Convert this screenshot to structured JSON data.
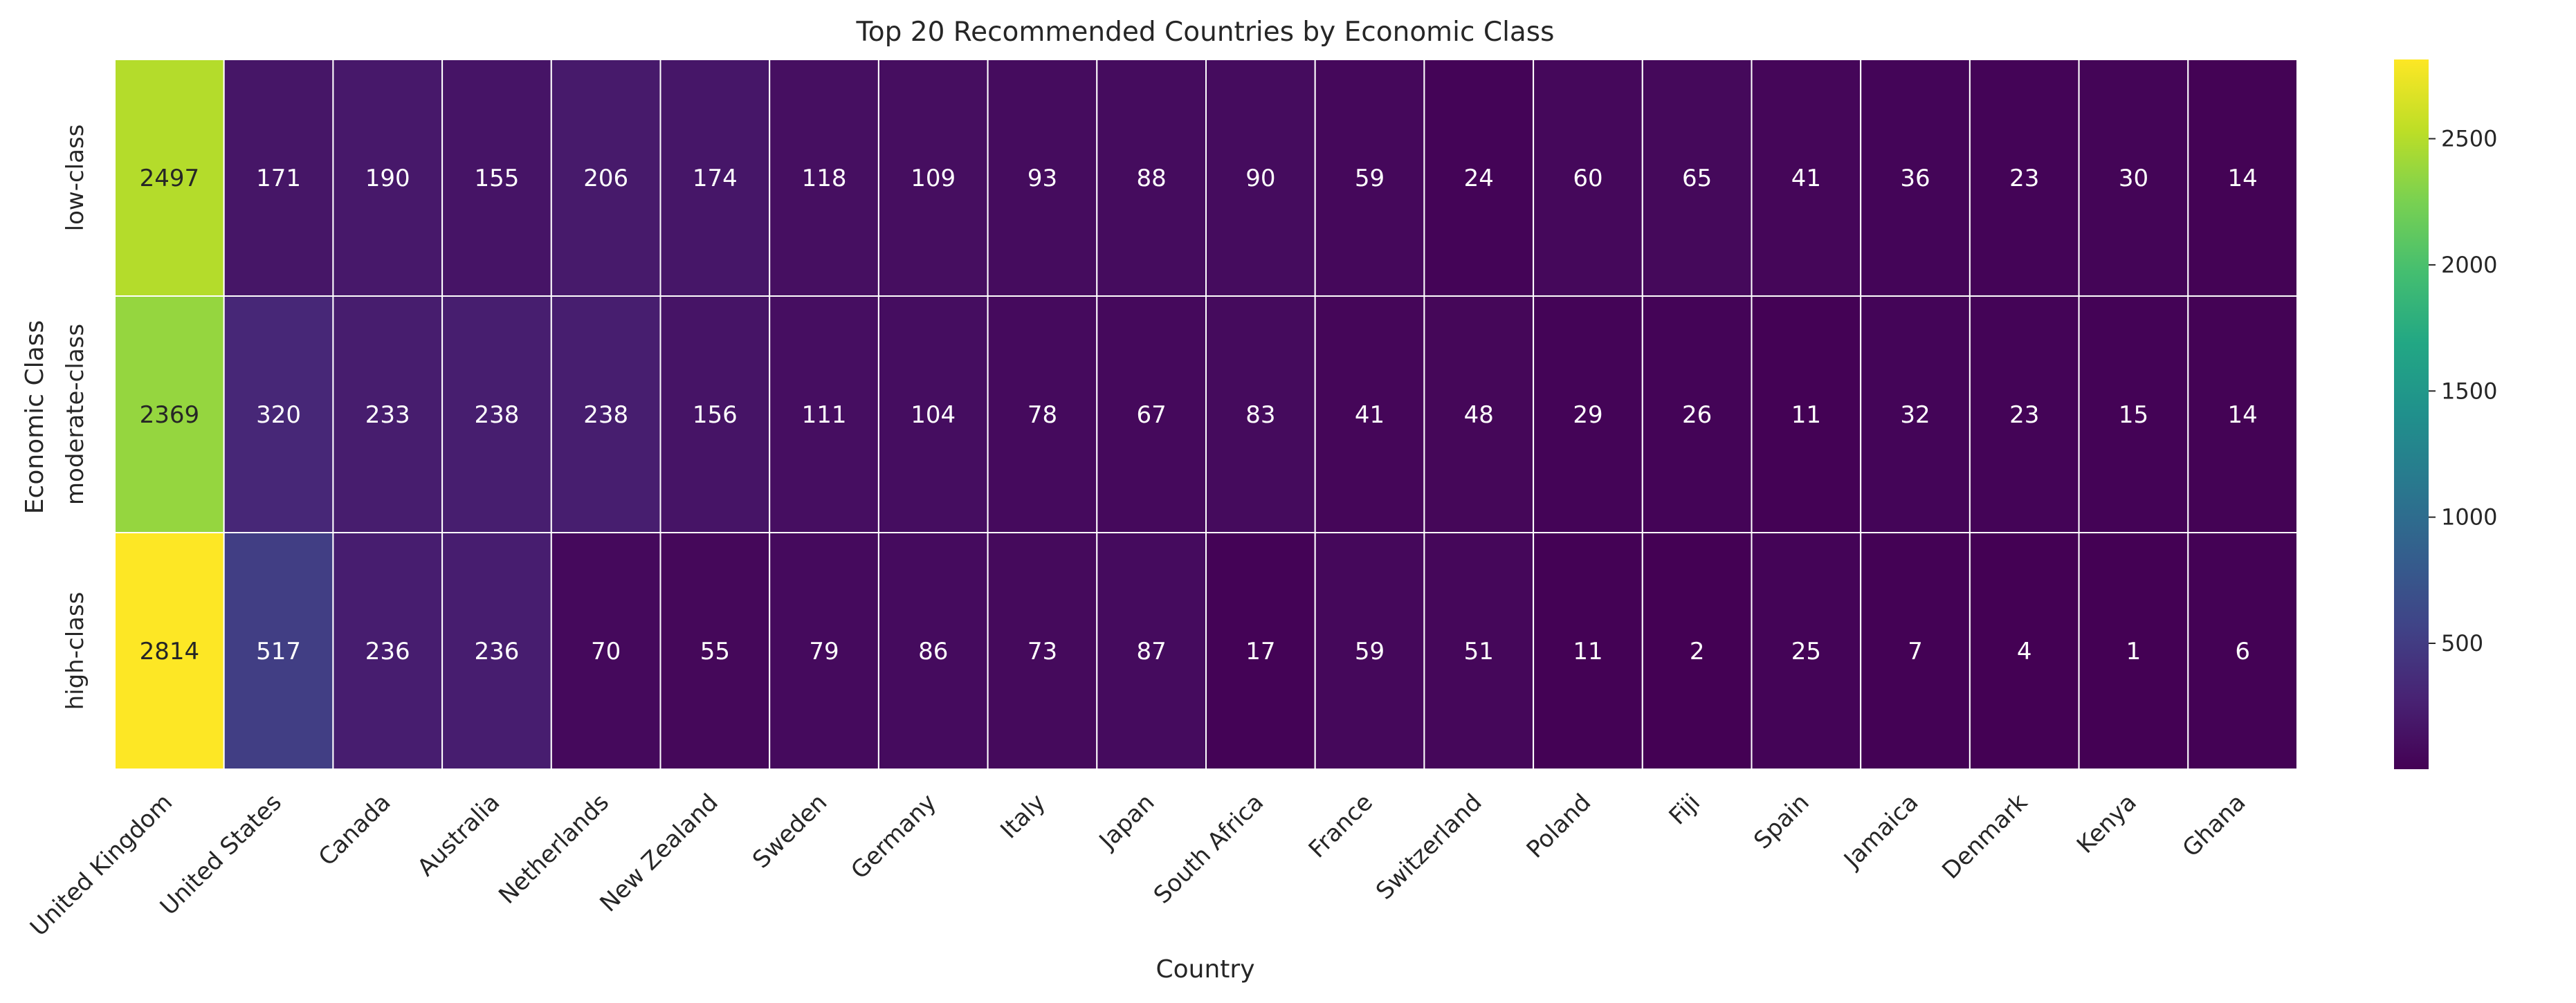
{
  "chart_data": {
    "type": "heatmap",
    "title": "Top 20 Recommended Countries by Economic Class",
    "xlabel": "Country",
    "ylabel": "Economic Class",
    "x": [
      "United Kingdom",
      "United States",
      "Canada",
      "Australia",
      "Netherlands",
      "New Zealand",
      "Sweden",
      "Germany",
      "Italy",
      "Japan",
      "South Africa",
      "France",
      "Switzerland",
      "Poland",
      "Fiji",
      "Spain",
      "Jamaica",
      "Denmark",
      "Kenya",
      "Ghana"
    ],
    "y": [
      "low-class",
      "moderate-class",
      "high-class"
    ],
    "values": [
      [
        2497,
        171,
        190,
        155,
        206,
        174,
        118,
        109,
        93,
        88,
        90,
        59,
        24,
        60,
        65,
        41,
        36,
        23,
        30,
        14
      ],
      [
        2369,
        320,
        233,
        238,
        238,
        156,
        111,
        104,
        78,
        67,
        83,
        41,
        48,
        29,
        26,
        11,
        32,
        23,
        15,
        14
      ],
      [
        2814,
        517,
        236,
        236,
        70,
        55,
        79,
        86,
        73,
        87,
        17,
        59,
        51,
        11,
        2,
        25,
        7,
        4,
        1,
        6
      ]
    ],
    "colorscale": "viridis",
    "color_range": [
      1,
      2814
    ],
    "colorbar_ticks": [
      500,
      1000,
      1500,
      2000,
      2500
    ],
    "annotations": "cell values shown",
    "grid": false
  }
}
